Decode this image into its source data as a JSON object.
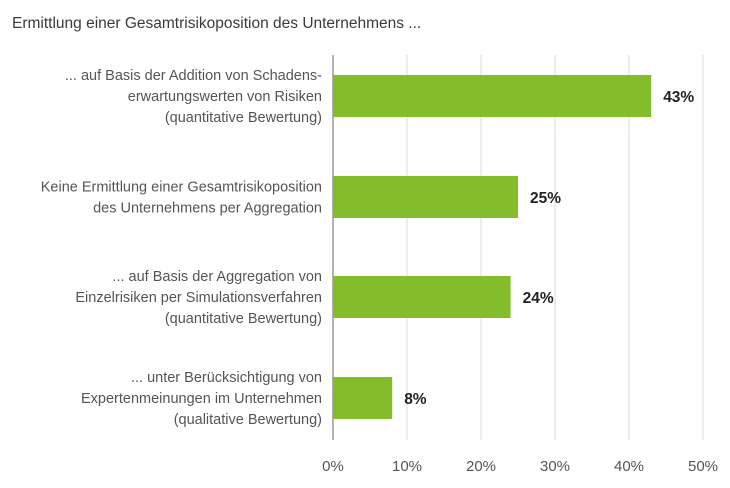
{
  "chart_data": {
    "type": "bar",
    "orientation": "horizontal",
    "title": "Ermittlung einer Gesamtrisikoposition des Unternehmens ...",
    "categories": [
      [
        "... auf Basis der Addition von Schadens-",
        "erwartungswerten von Risiken",
        "(quantitative Bewertung)"
      ],
      [
        "Keine Ermittlung einer Gesamtrisikoposition",
        "des Unternehmens per Aggregation"
      ],
      [
        "... auf Basis der Aggregation von",
        "Einzelrisiken per Simulationsverfahren",
        "(quantitative Bewertung)"
      ],
      [
        "... unter Berücksichtigung von",
        "Expertenmeinungen im Unternehmen",
        "(qualitative Bewertung)"
      ]
    ],
    "values": [
      43,
      25,
      24,
      8
    ],
    "value_labels": [
      "43%",
      "25%",
      "24%",
      "8%"
    ],
    "xlim": [
      0,
      50
    ],
    "xticks": [
      0,
      10,
      20,
      30,
      40,
      50
    ],
    "xtick_labels": [
      "0%",
      "10%",
      "20%",
      "30%",
      "40%",
      "50%"
    ],
    "xlabel": "",
    "ylabel": "",
    "grid": "vertical",
    "colors": {
      "bar": "#84bd2b",
      "grid": "#d9d9d9",
      "axis": "#9a9a9a"
    }
  }
}
